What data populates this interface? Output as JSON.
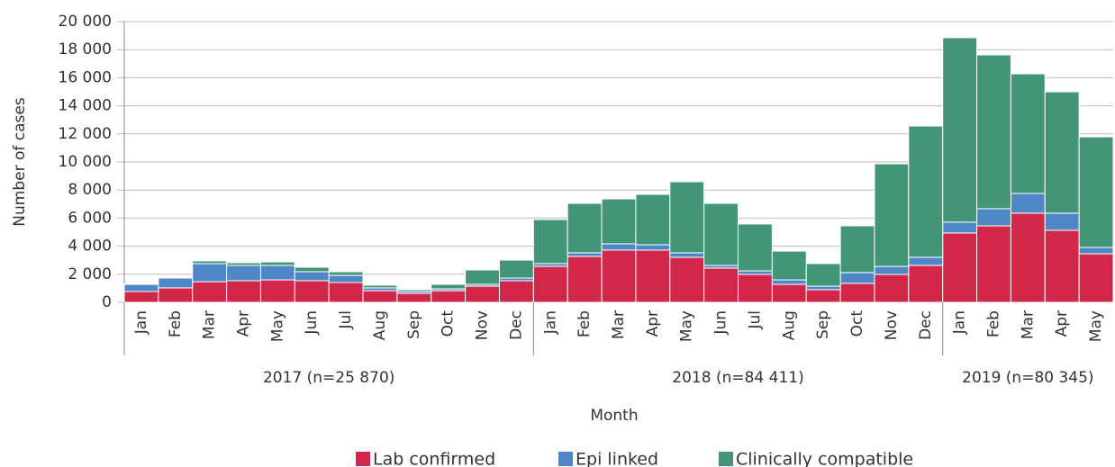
{
  "chart_data": {
    "type": "stacked_bar",
    "y_label": "Number of cases",
    "x_label": "Month",
    "groups": [
      {
        "label": "2017 (n=25 870)",
        "categories": [
          "Jan",
          "Feb",
          "Mar",
          "Apr",
          "May",
          "Jun",
          "Jul",
          "Aug",
          "Sep",
          "Oct",
          "Nov",
          "Dec"
        ]
      },
      {
        "label": "2018 (n=84 411)",
        "categories": [
          "Jan",
          "Feb",
          "Mar",
          "Apr",
          "May",
          "Jun",
          "Jul",
          "Aug",
          "Sep",
          "Oct",
          "Nov",
          "Dec"
        ]
      },
      {
        "label": "2019 (n=80 345)",
        "categories": [
          "Jan",
          "Feb",
          "Mar",
          "Apr",
          "May"
        ]
      }
    ],
    "series": [
      {
        "name": "Lab confirmed",
        "color": "#d1284a",
        "values": [
          770,
          1030,
          1470,
          1540,
          1600,
          1540,
          1410,
          830,
          640,
          830,
          1150,
          1540,
          2560,
          3270,
          3720,
          3720,
          3210,
          2440,
          1990,
          1280,
          900,
          1350,
          1990,
          2630,
          4940,
          5450,
          6350,
          5130,
          3460
        ]
      },
      {
        "name": "Epi linked",
        "color": "#4f86c6",
        "values": [
          510,
          700,
          1290,
          1090,
          1030,
          640,
          510,
          200,
          130,
          130,
          130,
          190,
          200,
          260,
          450,
          380,
          320,
          190,
          250,
          320,
          250,
          770,
          570,
          580,
          770,
          1220,
          1410,
          1220,
          450
        ]
      },
      {
        "name": "Clinically compatible",
        "color": "#429677",
        "values": [
          30,
          50,
          190,
          190,
          250,
          320,
          260,
          190,
          130,
          320,
          1030,
          1280,
          3140,
          3520,
          3200,
          3590,
          5060,
          4420,
          3340,
          2050,
          1610,
          3330,
          7310,
          9350,
          13140,
          10960,
          8520,
          8650,
          7880
        ]
      }
    ],
    "ylim": [
      0,
      20000
    ],
    "yticks": [
      0,
      {
        "value": 2000,
        "label": "2 000"
      },
      {
        "value": 4000,
        "label": "4 000"
      },
      {
        "value": 6000,
        "label": "6 000"
      },
      {
        "value": 8000,
        "label": "8 000"
      },
      {
        "value": 10000,
        "label": "10 000"
      },
      {
        "value": 12000,
        "label": "12 000"
      },
      {
        "value": 14000,
        "label": "14 000"
      },
      {
        "value": 16000,
        "label": "16 000"
      },
      {
        "value": 18000,
        "label": "18 000"
      },
      {
        "value": 20000,
        "label": "20 000"
      }
    ],
    "grid": true,
    "legend": "bottom"
  }
}
